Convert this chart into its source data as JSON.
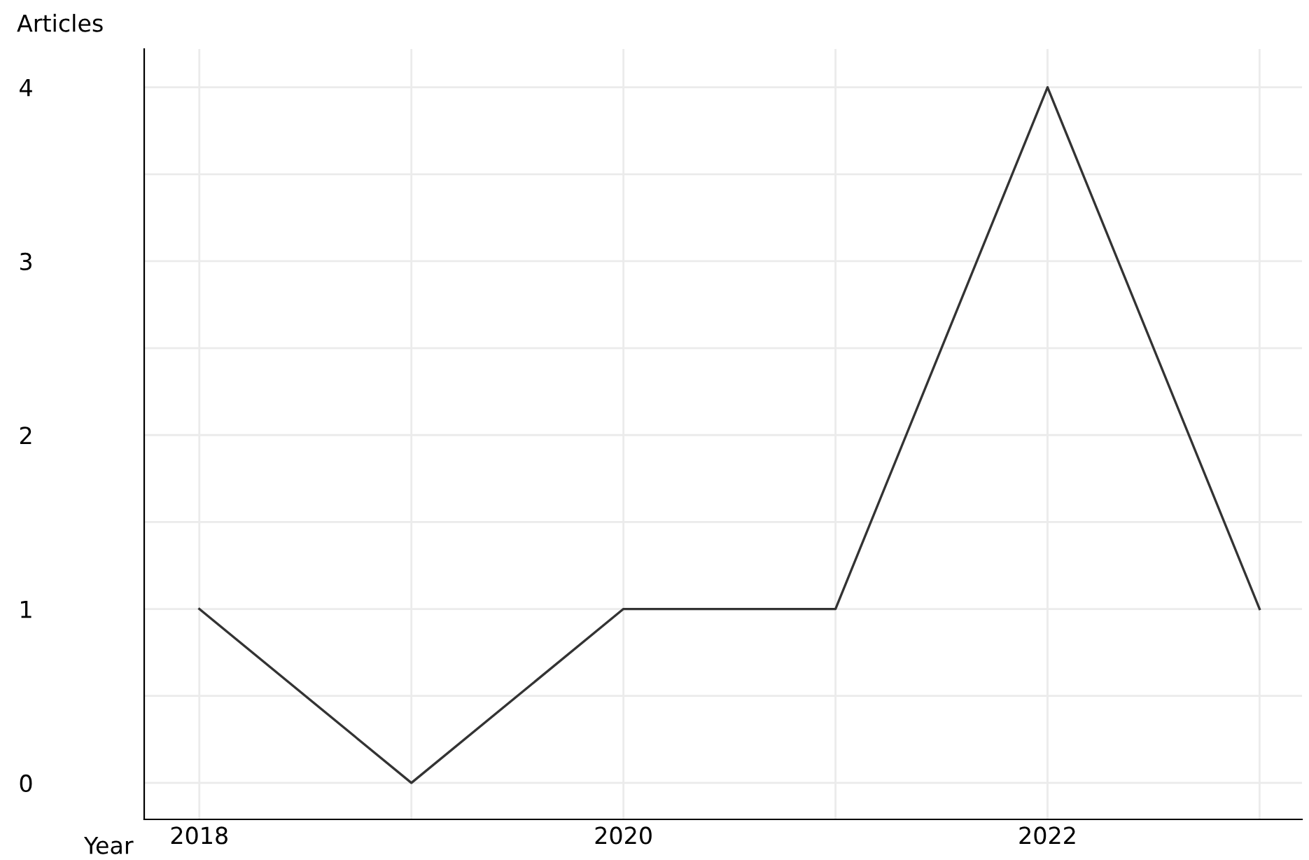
{
  "chart_data": {
    "type": "line",
    "xlabel": "Year",
    "ylabel": "Articles",
    "x": [
      2018,
      2019,
      2020,
      2021,
      2022,
      2023
    ],
    "series": [
      {
        "color": "#333333",
        "values": [
          1,
          0,
          1,
          1,
          4,
          1
        ]
      }
    ],
    "xlim": [
      2017.74,
      2023.2
    ],
    "ylim": [
      -0.21,
      4.22
    ],
    "xticks": [
      2018,
      {
        "value": 2019,
        "label": null
      },
      2020,
      {
        "value": 2021,
        "label": null
      },
      2022,
      {
        "value": 2023,
        "label": null
      }
    ],
    "yticks": [
      0,
      {
        "value": 0.5,
        "label": null
      },
      1,
      {
        "value": 1.5,
        "label": null
      },
      2,
      {
        "value": 2.5,
        "label": null
      },
      3,
      {
        "value": 3.5,
        "label": null
      },
      4
    ],
    "grid": true,
    "marker": "none",
    "line_style": "solid"
  }
}
